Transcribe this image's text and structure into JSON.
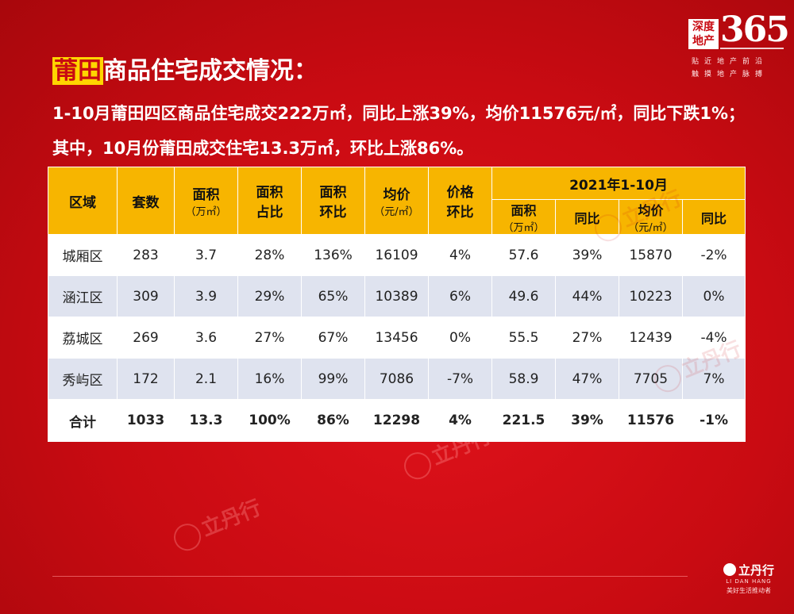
{
  "brand": {
    "box_line1": "深度",
    "box_line2": "地产",
    "number": "365",
    "tagline1": "贴近地产前沿",
    "tagline2": "触摸地产脉搏"
  },
  "title": {
    "highlight": "莆田",
    "rest": "商品住宅成交情况："
  },
  "summary": "1-10月莆田四区商品住宅成交222万㎡，同比上涨39%，均价11576元/㎡，同比下跌1%；其中，10月份莆田成交住宅13.3万㎡，环比上涨86%。",
  "table": {
    "headers": {
      "region": "区域",
      "units": "套数",
      "area": "面积",
      "area_unit": "（万㎡）",
      "area_share_1": "面积",
      "area_share_2": "占比",
      "area_mom_1": "面积",
      "area_mom_2": "环比",
      "avg_price": "均价",
      "avg_price_unit": "（元/㎡）",
      "price_mom_1": "价格",
      "price_mom_2": "环比",
      "ytd_group": "2021年1-10月",
      "ytd_area": "面积",
      "ytd_area_unit": "（万㎡）",
      "ytd_area_yoy": "同比",
      "ytd_price": "均价",
      "ytd_price_unit": "（元/㎡）",
      "ytd_price_yoy": "同比"
    },
    "rows": [
      {
        "region": "城厢区",
        "units": "283",
        "area": "3.7",
        "share": "28%",
        "area_mom": "136%",
        "avg_price": "16109",
        "price_mom": "4%",
        "ytd_area": "57.6",
        "ytd_area_yoy": "39%",
        "ytd_price": "15870",
        "ytd_price_yoy": "-2%"
      },
      {
        "region": "涵江区",
        "units": "309",
        "area": "3.9",
        "share": "29%",
        "area_mom": "65%",
        "avg_price": "10389",
        "price_mom": "6%",
        "ytd_area": "49.6",
        "ytd_area_yoy": "44%",
        "ytd_price": "10223",
        "ytd_price_yoy": "0%"
      },
      {
        "region": "荔城区",
        "units": "269",
        "area": "3.6",
        "share": "27%",
        "area_mom": "67%",
        "avg_price": "13456",
        "price_mom": "0%",
        "ytd_area": "55.5",
        "ytd_area_yoy": "27%",
        "ytd_price": "12439",
        "ytd_price_yoy": "-4%"
      },
      {
        "region": "秀屿区",
        "units": "172",
        "area": "2.1",
        "share": "16%",
        "area_mom": "99%",
        "avg_price": "7086",
        "price_mom": "-7%",
        "ytd_area": "58.9",
        "ytd_area_yoy": "47%",
        "ytd_price": "7705",
        "ytd_price_yoy": "7%"
      }
    ],
    "total": {
      "region": "合计",
      "units": "1033",
      "area": "13.3",
      "share": "100%",
      "area_mom": "86%",
      "avg_price": "12298",
      "price_mom": "4%",
      "ytd_area": "221.5",
      "ytd_area_yoy": "39%",
      "ytd_price": "11576",
      "ytd_price_yoy": "-1%"
    }
  },
  "watermark": {
    "name": "立丹行",
    "en": "LI DAN HANG"
  },
  "footer": {
    "name": "立丹行",
    "en": "LI DAN HANG",
    "slogan": "美好生活推动者"
  },
  "colors": {
    "background": "#c90b12",
    "header": "#f7b500",
    "title_highlight": "#ffd500",
    "row_alt": "#dfe3ef"
  }
}
